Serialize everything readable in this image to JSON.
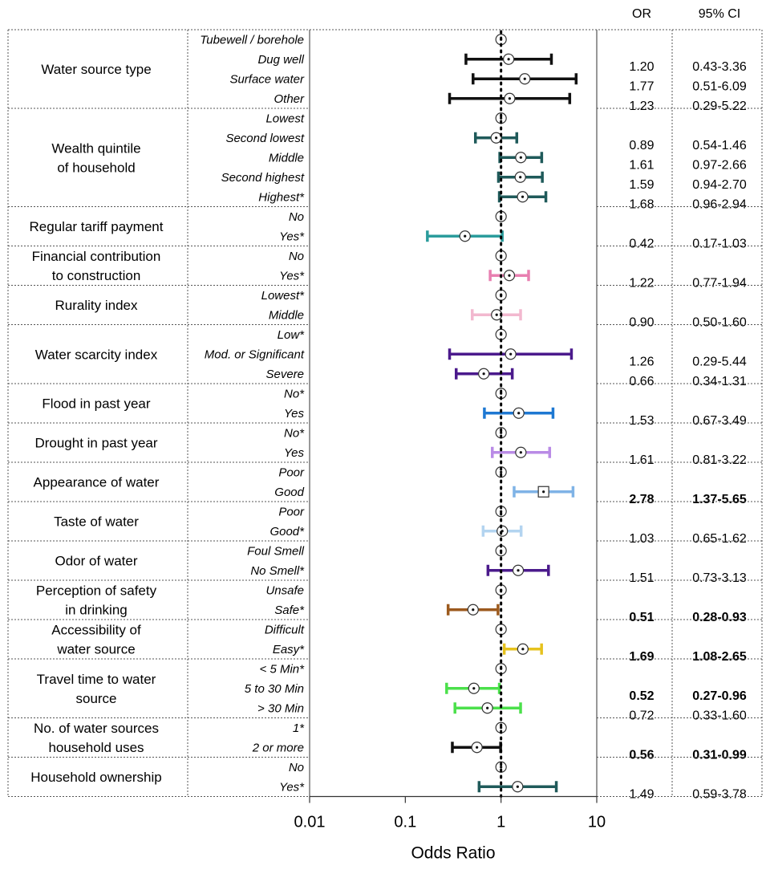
{
  "chart_data": {
    "type": "forest",
    "x_scale": "log",
    "xlim": [
      0.01,
      10
    ],
    "xticks": [
      "0.01",
      "0.1",
      "1",
      "10"
    ],
    "xlabel": "Odds  Ratio",
    "reference_line": 1,
    "columns": {
      "or": "OR",
      "ci": "95% CI"
    },
    "groups": [
      {
        "label": [
          "Water source type"
        ],
        "color": "#111111",
        "rows": [
          {
            "label": "Tubewell / borehole"
          },
          {
            "label": "Dug well",
            "or": 1.2,
            "lo": 0.43,
            "hi": 3.36,
            "or_text": "1.20",
            "ci_text": "0.43-3.36"
          },
          {
            "label": "Surface water",
            "or": 1.77,
            "lo": 0.51,
            "hi": 6.09,
            "or_text": "1.77",
            "ci_text": "0.51-6.09"
          },
          {
            "label": "Other",
            "or": 1.23,
            "lo": 0.29,
            "hi": 5.22,
            "or_text": "1.23",
            "ci_text": "0.29-5.22"
          }
        ]
      },
      {
        "label": [
          "Wealth quintile",
          "of household"
        ],
        "color": "#1f5a5a",
        "rows": [
          {
            "label": "Lowest"
          },
          {
            "label": "Second lowest",
            "or": 0.89,
            "lo": 0.54,
            "hi": 1.46,
            "or_text": "0.89",
            "ci_text": "0.54-1.46"
          },
          {
            "label": "Middle",
            "or": 1.61,
            "lo": 0.97,
            "hi": 2.66,
            "or_text": "1.61",
            "ci_text": "0.97-2.66"
          },
          {
            "label": "Second highest",
            "or": 1.59,
            "lo": 0.94,
            "hi": 2.7,
            "or_text": "1.59",
            "ci_text": "0.94-2.70"
          },
          {
            "label": "Highest*",
            "or": 1.68,
            "lo": 0.96,
            "hi": 2.94,
            "or_text": "1.68",
            "ci_text": "0.96-2.94"
          }
        ]
      },
      {
        "label": [
          "Regular tariff payment"
        ],
        "color": "#2b9c9c",
        "rows": [
          {
            "label": "No"
          },
          {
            "label": "Yes*",
            "or": 0.42,
            "lo": 0.17,
            "hi": 1.03,
            "or_text": "0.42",
            "ci_text": "0.17-1.03"
          }
        ]
      },
      {
        "label": [
          "Financial contribution",
          "to construction"
        ],
        "color": "#e87fb0",
        "rows": [
          {
            "label": "No"
          },
          {
            "label": "Yes*",
            "or": 1.22,
            "lo": 0.77,
            "hi": 1.94,
            "or_text": "1.22",
            "ci_text": "0.77-1.94"
          }
        ]
      },
      {
        "label": [
          "Rurality index"
        ],
        "color": "#f2b8cf",
        "rows": [
          {
            "label": "Lowest*"
          },
          {
            "label": "Middle",
            "or": 0.9,
            "lo": 0.5,
            "hi": 1.6,
            "or_text": "0.90",
            "ci_text": "0.50-1.60"
          }
        ]
      },
      {
        "label": [
          "Water scarcity index"
        ],
        "color": "#4b1a8c",
        "rows": [
          {
            "label": "Low*"
          },
          {
            "label": "Mod. or Significant",
            "or": 1.26,
            "lo": 0.29,
            "hi": 5.44,
            "or_text": "1.26",
            "ci_text": "0.29-5.44"
          },
          {
            "label": "Severe",
            "or": 0.66,
            "lo": 0.34,
            "hi": 1.31,
            "or_text": "0.66",
            "ci_text": "0.34-1.31"
          }
        ]
      },
      {
        "label": [
          "Flood in past year"
        ],
        "color": "#1e78d2",
        "rows": [
          {
            "label": "No*"
          },
          {
            "label": "Yes",
            "or": 1.53,
            "lo": 0.67,
            "hi": 3.49,
            "or_text": "1.53",
            "ci_text": "0.67-3.49"
          }
        ]
      },
      {
        "label": [
          "Drought in past year"
        ],
        "color": "#b98be6",
        "rows": [
          {
            "label": "No*"
          },
          {
            "label": "Yes",
            "or": 1.61,
            "lo": 0.81,
            "hi": 3.22,
            "or_text": "1.61",
            "ci_text": "0.81-3.22"
          }
        ]
      },
      {
        "label": [
          "Appearance of water"
        ],
        "color": "#7fb3e6",
        "rows": [
          {
            "label": "Poor"
          },
          {
            "label": "Good",
            "or": 2.78,
            "lo": 1.37,
            "hi": 5.65,
            "or_text": "2.78",
            "ci_text": "1.37-5.65",
            "bold": true,
            "marker": "square"
          }
        ]
      },
      {
        "label": [
          "Taste of water"
        ],
        "color": "#b3d4f0",
        "rows": [
          {
            "label": "Poor"
          },
          {
            "label": "Good*",
            "or": 1.03,
            "lo": 0.65,
            "hi": 1.62,
            "or_text": "1.03",
            "ci_text": "0.65-1.62"
          }
        ]
      },
      {
        "label": [
          "Odor of water"
        ],
        "color": "#4b1a8c",
        "rows": [
          {
            "label": "Foul Smell"
          },
          {
            "label": "No Smell*",
            "or": 1.51,
            "lo": 0.73,
            "hi": 3.13,
            "or_text": "1.51",
            "ci_text": "0.73-3.13"
          }
        ]
      },
      {
        "label": [
          "Perception of safety",
          "in drinking"
        ],
        "color": "#9c5a1e",
        "rows": [
          {
            "label": "Unsafe"
          },
          {
            "label": "Safe*",
            "or": 0.51,
            "lo": 0.28,
            "hi": 0.93,
            "or_text": "0.51",
            "ci_text": "0.28-0.93",
            "bold": true
          }
        ]
      },
      {
        "label": [
          "Accessibility of",
          "water source"
        ],
        "color": "#e6c21e",
        "rows": [
          {
            "label": "Difficult"
          },
          {
            "label": "Easy*",
            "or": 1.69,
            "lo": 1.08,
            "hi": 2.65,
            "or_text": "1.69",
            "ci_text": "1.08-2.65",
            "bold": true
          }
        ]
      },
      {
        "label": [
          "Travel time to water",
          "source"
        ],
        "color": "#4be04b",
        "rows": [
          {
            "label": "< 5 Min*"
          },
          {
            "label": "5 to 30 Min",
            "or": 0.52,
            "lo": 0.27,
            "hi": 0.96,
            "or_text": "0.52",
            "ci_text": "0.27-0.96",
            "bold": true
          },
          {
            "label": "> 30 Min",
            "or": 0.72,
            "lo": 0.33,
            "hi": 1.6,
            "or_text": "0.72",
            "ci_text": "0.33-1.60"
          }
        ]
      },
      {
        "label": [
          "No. of water sources",
          "household uses"
        ],
        "color": "#111111",
        "rows": [
          {
            "label": "1*"
          },
          {
            "label": "2 or more",
            "or": 0.56,
            "lo": 0.31,
            "hi": 0.99,
            "or_text": "0.56",
            "ci_text": "0.31-0.99",
            "bold": true
          }
        ]
      },
      {
        "label": [
          "Household ownership"
        ],
        "color": "#1f5a5a",
        "rows": [
          {
            "label": "No"
          },
          {
            "label": "Yes*",
            "or": 1.49,
            "lo": 0.59,
            "hi": 3.78,
            "or_text": "1.49",
            "ci_text": "0.59-3.78"
          }
        ]
      }
    ]
  }
}
